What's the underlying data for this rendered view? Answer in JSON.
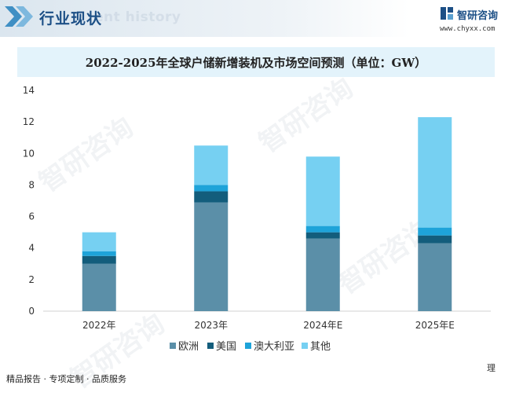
{
  "header": {
    "section_title": "行业现状",
    "ghost_text": "ent history",
    "logo_name": "智研咨询",
    "logo_url": "www.chyxx.com"
  },
  "watermark": "智研咨询",
  "footer": {
    "left_text": "精品报告 · 专项定制 · 品质服务",
    "right_text": "理"
  },
  "colors": {
    "europe": "#5b8fa8",
    "usa": "#135d7c",
    "australia": "#1ea3d9",
    "other": "#76d0f2",
    "title": "#1c4f86"
  },
  "chart_data": {
    "type": "bar",
    "stacked": true,
    "title": "2022-2025年全球户储新增装机及市场空间预测（单位：GW）",
    "categories": [
      "2022年",
      "2023年",
      "2024年E",
      "2025年E"
    ],
    "series": [
      {
        "name": "欧洲",
        "values": [
          3.0,
          6.9,
          4.6,
          4.3
        ]
      },
      {
        "name": "美国",
        "values": [
          0.5,
          0.7,
          0.4,
          0.5
        ]
      },
      {
        "name": "澳大利亚",
        "values": [
          0.3,
          0.4,
          0.4,
          0.5
        ]
      },
      {
        "name": "其他",
        "values": [
          1.2,
          2.5,
          4.4,
          7.0
        ]
      }
    ],
    "ylim": [
      0,
      14
    ],
    "yticks": [
      0,
      2,
      4,
      6,
      8,
      10,
      12,
      14
    ],
    "xlabel": "",
    "ylabel": "",
    "legend_position": "bottom-center"
  }
}
